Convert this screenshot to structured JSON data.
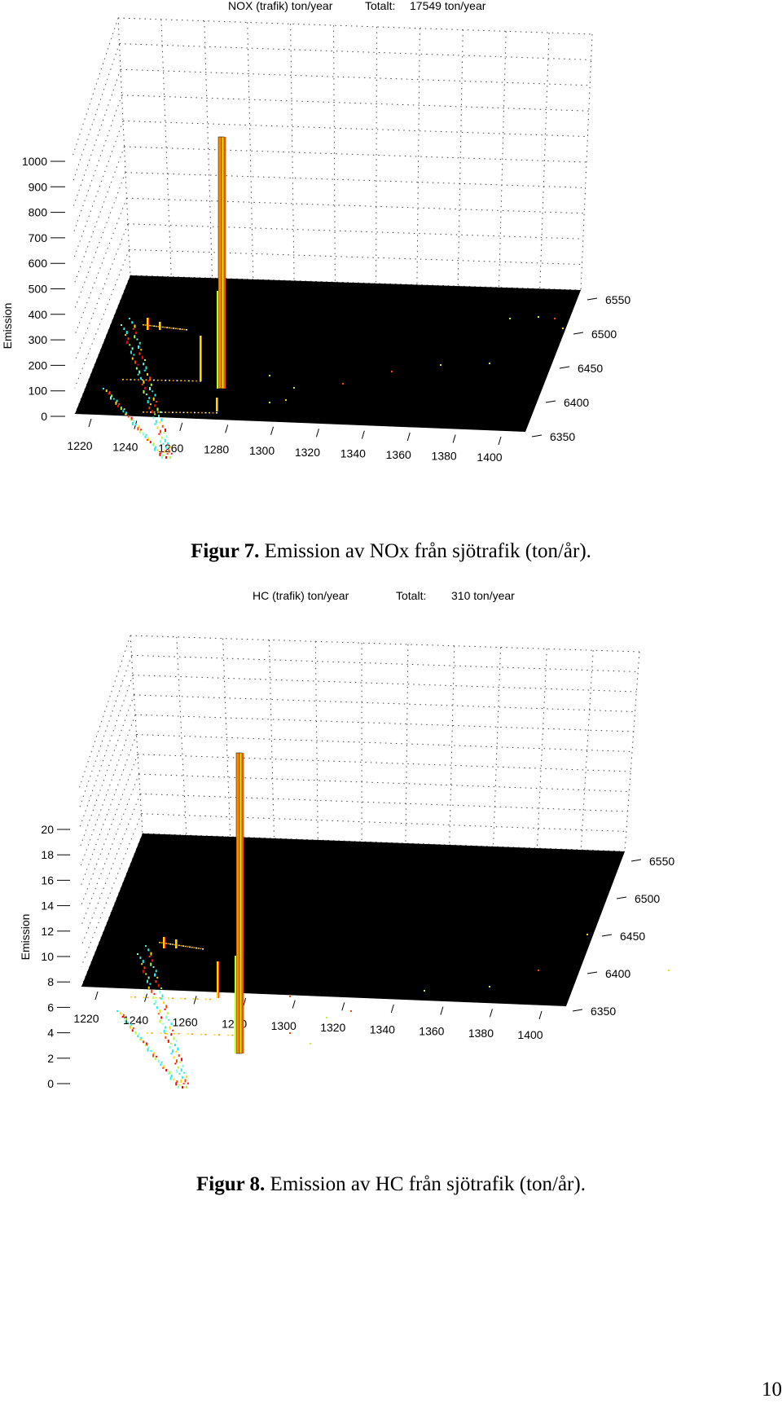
{
  "figures": [
    {
      "caption_label": "Figur 7.",
      "caption_text": "Emission av NOx  från sjötrafik (ton/år).",
      "chart_data": {
        "type": "3d-bar",
        "title": "NOX (trafik) ton/year",
        "total_label": "Totalt:",
        "total_value": "17549 ton/year",
        "zlabel": "Emission",
        "ylabel": "",
        "xlabel": "",
        "x_ticks": [
          "1220",
          "1240",
          "1260",
          "1280",
          "1300",
          "1320",
          "1340",
          "1360",
          "1380",
          "1400"
        ],
        "y_ticks": [
          "6350",
          "6400",
          "6450",
          "6500",
          "6550"
        ],
        "z_ticks": [
          "0",
          "100",
          "200",
          "300",
          "400",
          "500",
          "600",
          "700",
          "800",
          "900",
          "1000"
        ],
        "zlim": [
          0,
          1000
        ],
        "peak": {
          "x": 1280,
          "y": 6420,
          "value": 1000
        },
        "grid": true,
        "floor_color": "#000000"
      }
    },
    {
      "caption_label": "Figur 8.",
      "caption_text": "Emission av HC  från sjötrafik (ton/år).",
      "chart_data": {
        "type": "3d-bar",
        "title": "HC (trafik)  ton/year",
        "total_label": "Totalt:",
        "total_value": "310 ton/year",
        "zlabel": "Emission",
        "ylabel": "",
        "xlabel": "",
        "x_ticks": [
          "1220",
          "1240",
          "1260",
          "1280",
          "1300",
          "1320",
          "1340",
          "1360",
          "1380",
          "1400"
        ],
        "y_ticks": [
          "6350",
          "6400",
          "6450",
          "6500",
          "6550"
        ],
        "z_ticks": [
          "0",
          "2",
          "4",
          "6",
          "8",
          "10",
          "12",
          "14",
          "16",
          "18",
          "20"
        ],
        "zlim": [
          0,
          22
        ],
        "peak": {
          "x": 1280,
          "y": 6420,
          "value": 22
        },
        "grid": true,
        "floor_color": "#000000"
      }
    }
  ],
  "page_number": "10"
}
